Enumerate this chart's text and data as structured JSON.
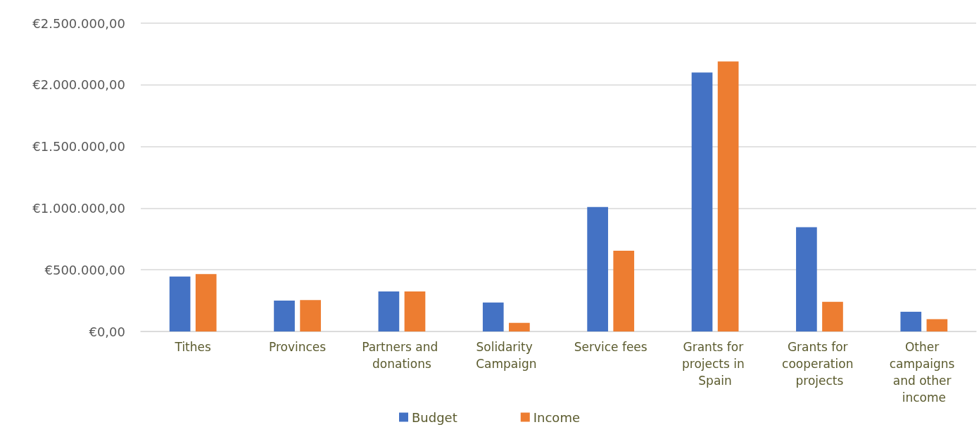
{
  "chart_data": {
    "type": "bar",
    "categories": [
      "Tithes",
      "Provinces",
      "Partners and donations",
      "Solidarity Campaign",
      "Service fees",
      "Grants for projects in Spain",
      "Grants for cooperation projects",
      "Other campaigns and other income"
    ],
    "series": [
      {
        "name": "Budget",
        "color": "#4472c4",
        "values": [
          445000,
          250000,
          325000,
          235000,
          1010000,
          2100000,
          845000,
          160000
        ]
      },
      {
        "name": "Income",
        "color": "#ed7d31",
        "values": [
          465000,
          255000,
          325000,
          70000,
          655000,
          2190000,
          240000,
          100000
        ]
      }
    ],
    "ylim": [
      0,
      2500000
    ],
    "yticks": [
      {
        "value": 0,
        "label": "€0,00"
      },
      {
        "value": 500000,
        "label": "€500.000,00"
      },
      {
        "value": 1000000,
        "label": "€1.000.000,00"
      },
      {
        "value": 1500000,
        "label": "€1.500.000,00"
      },
      {
        "value": 2000000,
        "label": "€2.000.000,00"
      },
      {
        "value": 2500000,
        "label": "€2.500.000,00"
      }
    ],
    "grid": "y",
    "legend": "bottom"
  }
}
